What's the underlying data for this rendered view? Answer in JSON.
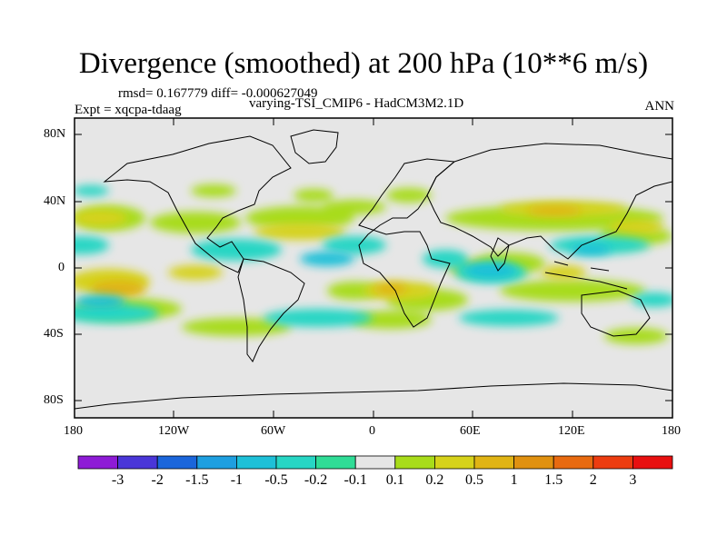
{
  "title": "Divergence (smoothed) at 200 hPa (10**6 m/s)",
  "stats": "rmsd= 0.167779 diff= -0.000627049",
  "subtitle": "varying-TSI_CMIP6 - HadCM3M2.1D",
  "experiment": "Expt = xqcpa-tdaag",
  "season": "ANN",
  "axes": {
    "lat_labels": [
      "80N",
      "40N",
      "0",
      "40S",
      "80S"
    ],
    "lon_labels": [
      "180",
      "120W",
      "60W",
      "0",
      "60E",
      "120E",
      "180"
    ]
  },
  "colorbar": {
    "colors": [
      "#8e1bd6",
      "#4a36d8",
      "#1b66db",
      "#1e9fe0",
      "#1ec0d8",
      "#27d6c4",
      "#2fdc96",
      "#e6e6e6",
      "#a8dc1a",
      "#d6d21a",
      "#e0b414",
      "#e09110",
      "#e86a10",
      "#ec3c10",
      "#e81010"
    ],
    "labels": [
      "-3",
      "-2",
      "-1.5",
      "-1",
      "-0.5",
      "-0.2",
      "-0.1",
      "0.1",
      "0.2",
      "0.5",
      "1",
      "1.5",
      "2",
      "3"
    ]
  },
  "colors": {
    "ocean": "#e6e6e6",
    "coast": "#000000"
  }
}
